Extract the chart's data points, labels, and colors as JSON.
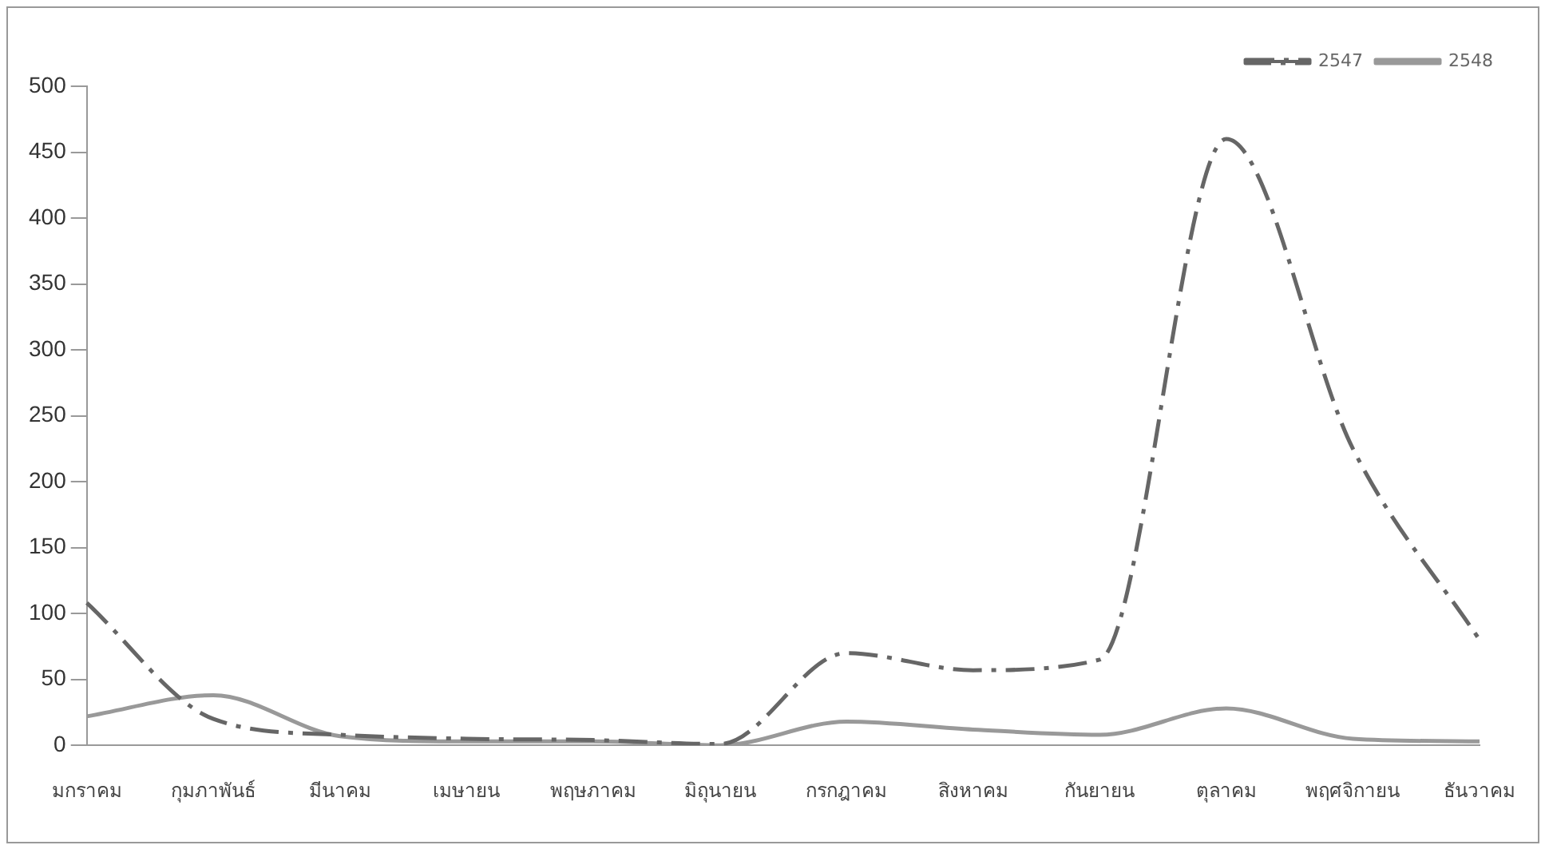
{
  "chart_data": {
    "type": "line",
    "categories": [
      "มกราคม",
      "กุมภาพันธ์",
      "มีนาคม",
      "เมษายน",
      "พฤษภาคม",
      "มิถุนายน",
      "กรกฎาคม",
      "สิงหาคม",
      "กันยายน",
      "ตุลาคม",
      "พฤศจิกายน",
      "ธันวาคม"
    ],
    "series": [
      {
        "name": "2547",
        "color": "#666666",
        "line_style": "dashed",
        "values": [
          108,
          20,
          8,
          5,
          4,
          1,
          70,
          57,
          65,
          460,
          225,
          80
        ]
      },
      {
        "name": "2548",
        "color": "#999999",
        "line_style": "solid",
        "values": [
          22,
          38,
          7,
          3,
          3,
          0,
          18,
          12,
          8,
          28,
          5,
          3
        ]
      }
    ],
    "ylim": [
      0,
      500
    ],
    "yticks": [
      0,
      50,
      100,
      150,
      200,
      250,
      300,
      350,
      400,
      450,
      500
    ],
    "grid": false,
    "legend": "top right",
    "marker": "none"
  }
}
